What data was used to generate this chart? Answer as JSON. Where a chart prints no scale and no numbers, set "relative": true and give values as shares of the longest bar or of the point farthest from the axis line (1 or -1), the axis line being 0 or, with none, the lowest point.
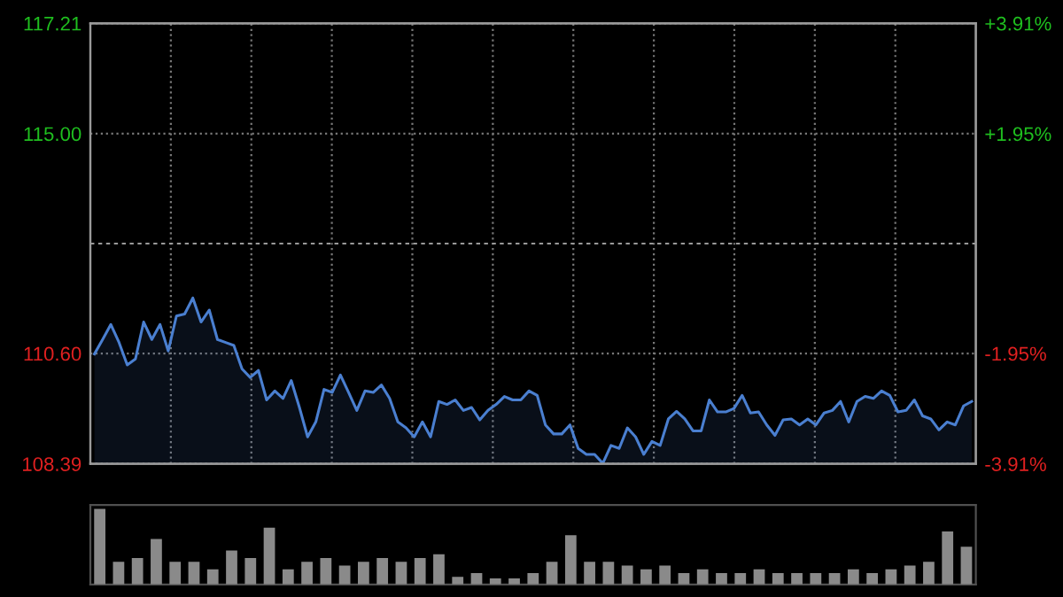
{
  "chart_data": [
    {
      "type": "area",
      "color": "#4a7fd0",
      "categories": [
        null,
        null,
        null,
        null,
        null,
        null,
        null,
        null,
        null,
        null,
        null,
        null,
        null,
        null,
        null,
        null,
        null,
        null,
        null,
        null,
        null,
        null,
        null,
        null,
        null,
        null,
        null,
        null,
        null,
        null,
        null,
        null,
        null,
        null,
        null,
        null,
        null,
        null,
        null,
        null,
        null,
        null,
        null,
        null,
        null,
        null,
        null,
        null,
        null,
        null,
        null,
        null,
        null,
        null,
        null,
        null,
        null,
        null,
        null,
        null,
        null,
        null,
        null,
        null,
        null,
        null,
        null,
        null,
        null,
        null,
        null,
        null,
        null,
        null,
        null,
        null,
        null,
        null,
        null,
        null,
        null,
        null,
        null,
        null,
        null,
        null,
        null,
        null,
        null,
        null,
        null,
        null,
        null,
        null,
        null,
        null,
        null,
        null,
        null,
        null,
        null,
        null,
        null,
        null,
        null,
        null,
        null,
        null
      ],
      "values": [
        110.59,
        110.88,
        111.18,
        110.82,
        110.37,
        110.49,
        111.23,
        110.88,
        111.18,
        110.65,
        111.35,
        111.39,
        111.71,
        111.23,
        111.47,
        110.88,
        110.82,
        110.76,
        110.29,
        110.12,
        110.26,
        109.67,
        109.85,
        109.7,
        110.06,
        109.52,
        108.93,
        109.23,
        109.88,
        109.82,
        110.17,
        109.82,
        109.46,
        109.85,
        109.82,
        109.97,
        109.7,
        109.23,
        109.11,
        108.93,
        109.23,
        108.93,
        109.64,
        109.58,
        109.67,
        109.46,
        109.52,
        109.27,
        109.46,
        109.58,
        109.74,
        109.67,
        109.67,
        109.85,
        109.76,
        109.17,
        108.99,
        108.99,
        109.17,
        108.7,
        108.58,
        108.58,
        108.4,
        108.76,
        108.7,
        109.11,
        108.93,
        108.58,
        108.84,
        108.76,
        109.29,
        109.44,
        109.29,
        109.05,
        109.05,
        109.67,
        109.43,
        109.43,
        109.5,
        109.76,
        109.41,
        109.43,
        109.17,
        108.96,
        109.27,
        109.29,
        109.17,
        109.29,
        109.17,
        109.41,
        109.46,
        109.64,
        109.23,
        109.64,
        109.74,
        109.7,
        109.85,
        109.76,
        109.43,
        109.46,
        109.67,
        109.35,
        109.29,
        109.07,
        109.23,
        109.17,
        109.55,
        109.64
      ],
      "ylim": [
        108.39,
        117.21
      ],
      "yticks": [
        {
          "value": 108.39,
          "label": "108.39"
        },
        {
          "value": 110.6,
          "label": "110.60"
        },
        {
          "value": 115,
          "label": "115.00"
        },
        {
          "value": 117.21,
          "label": "117.21"
        }
      ],
      "y2lim": [
        -3.91,
        3.91
      ],
      "y2ticks": [
        {
          "value": -3.91,
          "label": "-3.91%"
        },
        {
          "value": -1.95,
          "label": "-1.95%"
        },
        {
          "value": 1.95,
          "label": "+1.95%"
        },
        {
          "value": 3.91,
          "label": "+3.91%"
        }
      ],
      "ref_lines": [
        {
          "axis": "y2",
          "value": 0
        }
      ],
      "grid": true
    },
    {
      "type": "bar",
      "relative": true,
      "color": "#8a8a8a",
      "categories": [
        null,
        null,
        null,
        null,
        null,
        null,
        null,
        null,
        null,
        null,
        null,
        null,
        null,
        null,
        null,
        null,
        null,
        null,
        null,
        null,
        null,
        null,
        null,
        null,
        null,
        null,
        null,
        null,
        null,
        null,
        null,
        null,
        null,
        null,
        null,
        null,
        null,
        null,
        null,
        null,
        null,
        null,
        null,
        null,
        null,
        null,
        null
      ],
      "values": [
        1.0,
        0.3,
        0.35,
        0.6,
        0.3,
        0.3,
        0.2,
        0.45,
        0.35,
        0.75,
        0.2,
        0.3,
        0.35,
        0.25,
        0.3,
        0.35,
        0.3,
        0.35,
        0.4,
        0.1,
        0.15,
        0.08,
        0.08,
        0.15,
        0.3,
        0.65,
        0.3,
        0.3,
        0.25,
        0.2,
        0.25,
        0.15,
        0.2,
        0.15,
        0.15,
        0.2,
        0.15,
        0.15,
        0.15,
        0.15,
        0.2,
        0.15,
        0.2,
        0.25,
        0.3,
        0.7,
        0.5
      ]
    }
  ]
}
